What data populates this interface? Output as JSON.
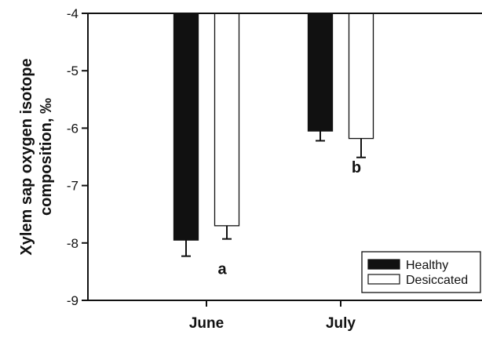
{
  "chart_data": {
    "type": "bar",
    "categories": [
      "June",
      "July"
    ],
    "series": [
      {
        "name": "Healthy",
        "values": [
          -7.95,
          -6.05
        ],
        "error": [
          0.28,
          0.17
        ],
        "color": "#111111"
      },
      {
        "name": "Desiccated",
        "values": [
          -7.7,
          -6.18
        ],
        "error": [
          0.23,
          0.33
        ],
        "color": "#ffffff"
      }
    ],
    "ylabel_lines": [
      "Xylem sap oxygen isotope",
      "composition, ‰"
    ],
    "yticks": [
      -4,
      -5,
      -6,
      -7,
      -8,
      -9
    ],
    "yticklabels": [
      "-4",
      "-5",
      "-6",
      "-7",
      "-8",
      "-9"
    ],
    "ylim": [
      -9,
      -4
    ],
    "baseline": -4,
    "annotations": [
      {
        "text": "a",
        "category": "June",
        "y": -8.45
      },
      {
        "text": "b",
        "category": "July",
        "y": -6.68
      }
    ],
    "legend": {
      "position": "bottom-right",
      "entries": [
        "Healthy",
        "Desiccated"
      ]
    },
    "grid": false
  }
}
